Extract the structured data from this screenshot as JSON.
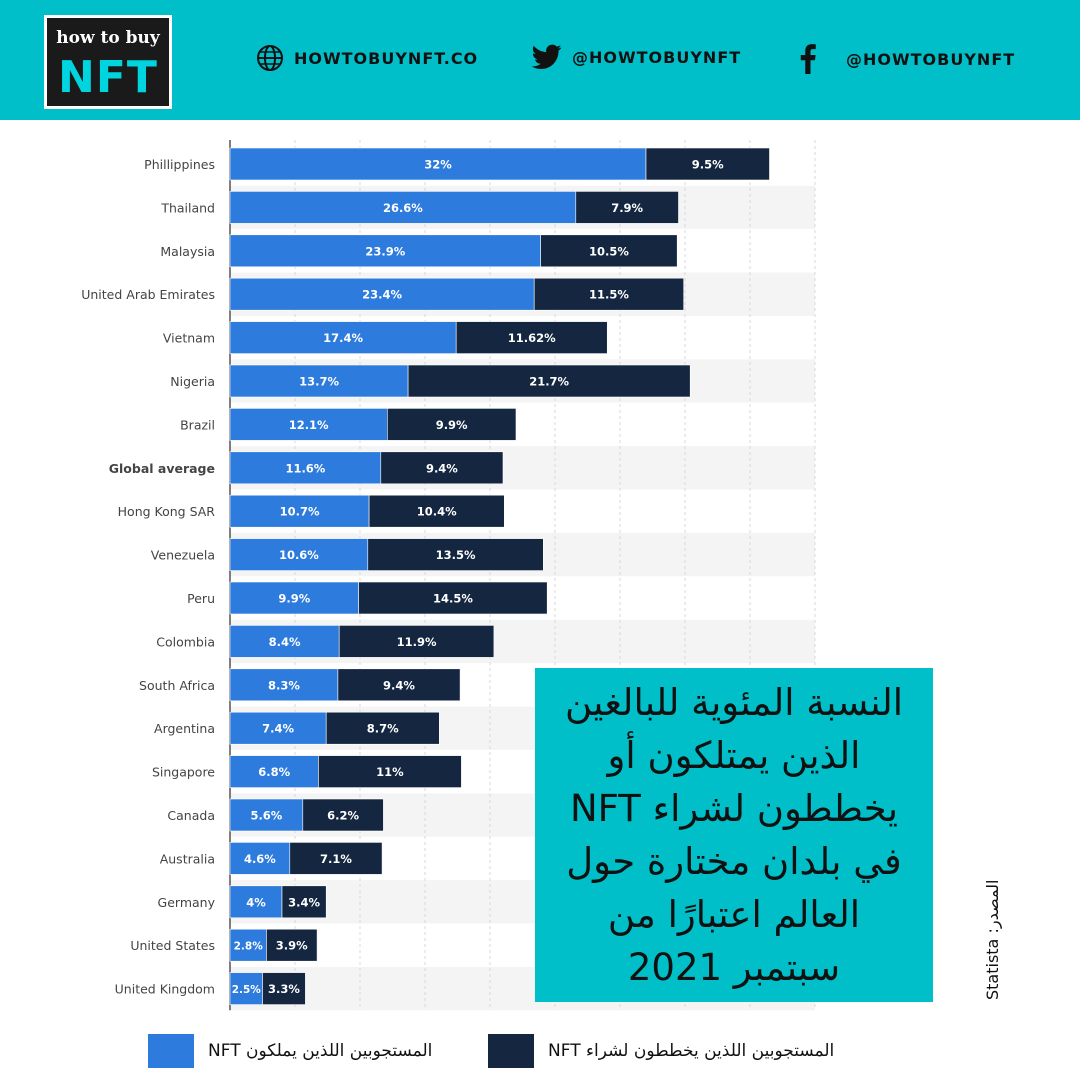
{
  "header": {
    "logo_top": "how to buy",
    "logo_bottom": "NFT",
    "website": "HOWTOBUYNFT.CO",
    "twitter": "@HOWTOBUYNFT",
    "facebook": "@HOWTOBUYNFT",
    "icons": [
      "globe-icon",
      "twitter-icon",
      "facebook-icon"
    ]
  },
  "colors": {
    "header_bg": "#00bfc9",
    "own": "#2e7bde",
    "plan": "#142640"
  },
  "annotation": {
    "text": "النسبة المئوية للبالغين\nالذين يمتلكون أو\nيخططون لشراء NFT\nفي بلدان مختارة حول\nالعالم اعتبارًا من\nسبتمبر 2021"
  },
  "source_text": "المصدر: Statista",
  "chart_data": {
    "type": "bar",
    "orientation": "horizontal",
    "stacked": true,
    "grid": true,
    "categories": [
      "Phillippines",
      "Thailand",
      "Malaysia",
      "United Arab Emirates",
      "Vietnam",
      "Nigeria",
      "Brazil",
      "Global average",
      "Hong Kong SAR",
      "Venezuela",
      "Peru",
      "Colombia",
      "South Africa",
      "Argentina",
      "Singapore",
      "Canada",
      "Australia",
      "Germany",
      "United States",
      "United Kingdom"
    ],
    "series": [
      {
        "name": "المستجوبين اللذين يملكون NFT",
        "color": "#2e7bde",
        "values": [
          32,
          26.6,
          23.9,
          23.4,
          17.4,
          13.7,
          12.1,
          11.6,
          10.7,
          10.6,
          9.9,
          8.4,
          8.3,
          7.4,
          6.8,
          5.6,
          4.6,
          4,
          2.8,
          2.5
        ],
        "labels": [
          "32%",
          "26.6%",
          "23.9%",
          "23.4%",
          "17.4%",
          "13.7%",
          "12.1%",
          "11.6%",
          "10.7%",
          "10.6%",
          "9.9%",
          "8.4%",
          "8.3%",
          "7.4%",
          "6.8%",
          "5.6%",
          "4.6%",
          "4%",
          "2.8%",
          "2.5%"
        ]
      },
      {
        "name": "المستجوبين اللذين يخططون لشراء NFT",
        "color": "#142640",
        "values": [
          9.5,
          7.9,
          10.5,
          11.5,
          11.62,
          21.7,
          9.9,
          9.4,
          10.4,
          13.5,
          14.5,
          11.9,
          9.4,
          8.7,
          11,
          6.2,
          7.1,
          3.4,
          3.9,
          3.3
        ],
        "labels": [
          "9.5%",
          "7.9%",
          "10.5%",
          "11.5%",
          "11.62%",
          "21.7%",
          "9.9%",
          "9.4%",
          "10.4%",
          "13.5%",
          "14.5%",
          "11.9%",
          "9.4%",
          "8.7%",
          "11%",
          "6.2%",
          "7.1%",
          "3.4%",
          "3.9%",
          "3.3%"
        ]
      }
    ],
    "xlim": [
      0,
      45
    ],
    "legend_position": "bottom"
  }
}
